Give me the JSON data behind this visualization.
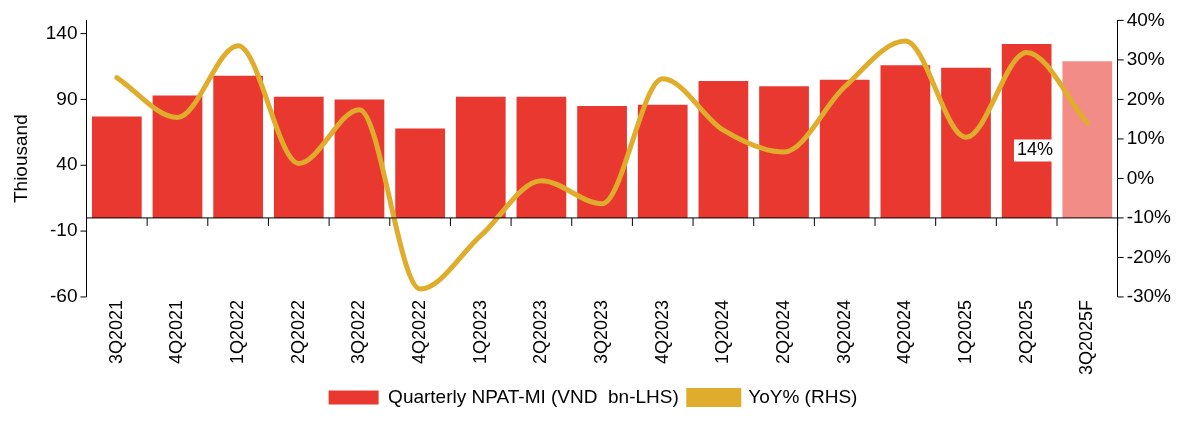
{
  "chart_data": {
    "type": "bar",
    "ylabel": "Thiousand",
    "categories": [
      "3Q2021",
      "4Q2021",
      "1Q2022",
      "2Q2022",
      "3Q2022",
      "4Q2022",
      "1Q2023",
      "2Q2023",
      "3Q2023",
      "4Q2023",
      "1Q2024",
      "2Q2024",
      "3Q2024",
      "4Q2024",
      "1Q2025",
      "2Q2025",
      "3Q2025F"
    ],
    "series": [
      {
        "name": "Quarterly NPAT-MI (VND  bn-LHS)",
        "color": "#e8382f",
        "colors": [
          "#e8382f",
          "#e8382f",
          "#e8382f",
          "#e8382f",
          "#e8382f",
          "#e8382f",
          "#e8382f",
          "#e8382f",
          "#e8382f",
          "#e8382f",
          "#e8382f",
          "#e8382f",
          "#e8382f",
          "#e8382f",
          "#e8382f",
          "#e8382f",
          "#f28c86"
        ],
        "values": [
          77,
          93,
          108,
          92,
          90,
          68,
          92,
          92,
          85,
          86,
          104,
          100,
          105,
          116,
          114,
          132,
          119
        ]
      },
      {
        "name": "YoY% (RHS)",
        "type": "line",
        "axis": "y2",
        "color": "#e0ac2c",
        "values": [
          25.5,
          15.4,
          33.6,
          3.8,
          17.4,
          -28,
          -14.5,
          -0.6,
          -6.4,
          25.2,
          12.2,
          6.7,
          23.2,
          34.8,
          10.4,
          31.9,
          14
        ]
      }
    ],
    "ylim": [
      -60,
      150
    ],
    "yticks": [
      -60,
      -10,
      40,
      90,
      140
    ],
    "y2lim": [
      -30,
      40
    ],
    "y2ticks": [
      {
        "value": -30,
        "label": "-30%"
      },
      {
        "value": -20,
        "label": "-20%"
      },
      {
        "value": -10,
        "label": "-10%"
      },
      {
        "value": 0,
        "label": "0%"
      },
      {
        "value": 10,
        "label": "10%"
      },
      {
        "value": 20,
        "label": "20%"
      },
      {
        "value": 30,
        "label": "30%"
      },
      {
        "value": 40,
        "label": "40%"
      }
    ],
    "annotations": [
      "14%"
    ],
    "ref_lines": [
      {
        "axis": "y",
        "value": 0,
        "color": "#000000"
      }
    ],
    "legend": "bottom",
    "grid": false,
    "marker": "none",
    "line_style": "solid"
  }
}
